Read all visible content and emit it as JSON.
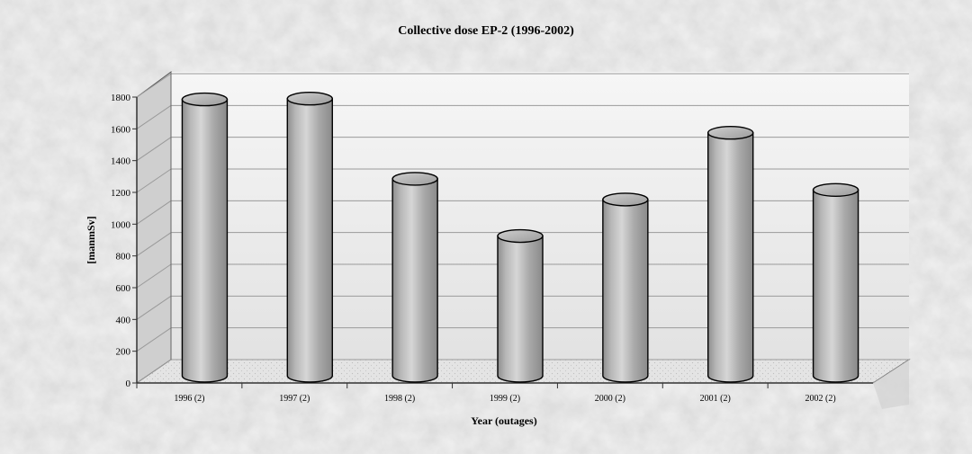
{
  "chart_data": {
    "type": "bar",
    "title": "Collective dose EP-2 (1996-2002)",
    "xlabel": "Year (outages)",
    "ylabel": "[manmSv]",
    "categories": [
      "1996 (2)",
      "1997 (2)",
      "1998 (2)",
      "1999 (2)",
      "2000 (2)",
      "2001 (2)",
      "2002 (2)"
    ],
    "values": [
      1740,
      1745,
      1240,
      880,
      1110,
      1530,
      1170
    ],
    "ylim": [
      0,
      1800
    ],
    "yticks": [
      0,
      200,
      400,
      600,
      800,
      1000,
      1200,
      1400,
      1600,
      1800
    ],
    "grid": true,
    "bar_style": "3d-cylinder",
    "colors": {
      "bar": "#a8a8a8",
      "background": "#dcdcdc",
      "plot_wall": "#efefef"
    }
  }
}
